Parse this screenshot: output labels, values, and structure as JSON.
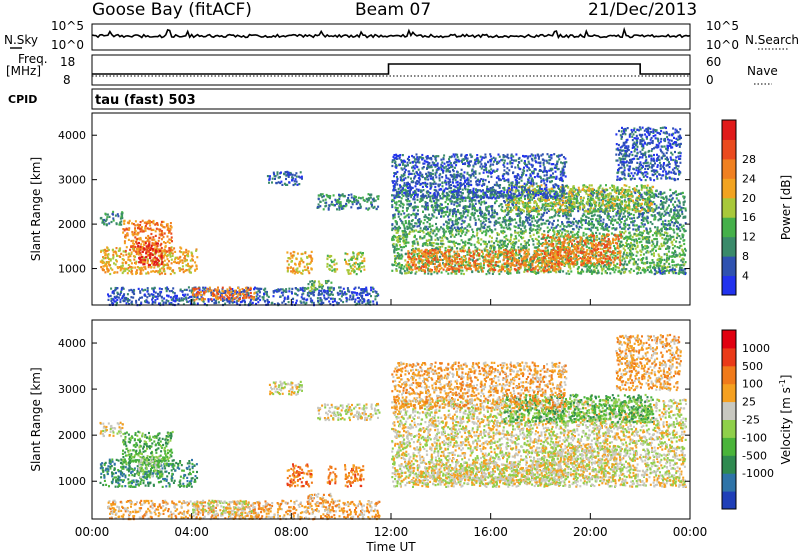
{
  "header": {
    "station": "Goose Bay (fitACF)",
    "beam": "Beam 07",
    "date": "21/Dec/2013"
  },
  "top_panels": {
    "nsky_label": "N.Sky",
    "nsky_ticks": [
      "10^5",
      "10^0"
    ],
    "nsearch_label": "N.Search",
    "nsearch_ticks": [
      "10^5",
      "10^0"
    ],
    "freq_label": "Freq.",
    "freq_unit": "[MHz]",
    "freq_ticks": [
      "18",
      "8"
    ],
    "nave_label": "Nave",
    "nave_ticks": [
      "60",
      "0"
    ],
    "cpid_label": "CPID",
    "cpid_value": "tau (fast) 503"
  },
  "chart_data": [
    {
      "type": "heatmap",
      "name": "power",
      "ylabel": "Slant Range [km]",
      "ylim": [
        180,
        4500
      ],
      "yticks": [
        1000,
        2000,
        3000,
        4000
      ],
      "xlim": [
        0,
        24
      ],
      "colorbar": {
        "label": "Power [dB]",
        "ticks": [
          "4",
          "8",
          "12",
          "16",
          "20",
          "24",
          "28"
        ],
        "colors": [
          "#2233ee",
          "#2f52b0",
          "#3a8a6a",
          "#45b04a",
          "#a8c83a",
          "#f2a320",
          "#f08020",
          "#ea4a1e",
          "#e01a1a"
        ]
      },
      "blobs": [
        {
          "t0": 0.3,
          "t1": 1.2,
          "r0": 2000,
          "r1": 2300,
          "c": 2
        },
        {
          "t0": 0.3,
          "t1": 4.2,
          "r0": 900,
          "r1": 1500,
          "c": 5
        },
        {
          "t0": 1.2,
          "t1": 3.2,
          "r0": 1400,
          "r1": 2100,
          "c": 6
        },
        {
          "t0": 1.8,
          "t1": 2.8,
          "r0": 1100,
          "r1": 1600,
          "c": 8
        },
        {
          "t0": 0.6,
          "t1": 11.5,
          "r0": 200,
          "r1": 600,
          "c": 1
        },
        {
          "t0": 4.0,
          "t1": 6.5,
          "r0": 300,
          "r1": 600,
          "c": 6
        },
        {
          "t0": 7.8,
          "t1": 8.8,
          "r0": 900,
          "r1": 1400,
          "c": 5
        },
        {
          "t0": 9.4,
          "t1": 9.8,
          "r0": 950,
          "r1": 1350,
          "c": 4
        },
        {
          "t0": 10.1,
          "t1": 10.9,
          "r0": 900,
          "r1": 1400,
          "c": 4
        },
        {
          "t0": 8.6,
          "t1": 9.6,
          "r0": 520,
          "r1": 750,
          "c": 3
        },
        {
          "t0": 7.0,
          "t1": 8.4,
          "r0": 2900,
          "r1": 3200,
          "c": 1
        },
        {
          "t0": 9.0,
          "t1": 11.5,
          "r0": 2350,
          "r1": 2700,
          "c": 2
        },
        {
          "t0": 12.0,
          "t1": 23.8,
          "r0": 900,
          "r1": 1900,
          "c": 3
        },
        {
          "t0": 12.6,
          "t1": 18.8,
          "r0": 950,
          "r1": 1450,
          "c": 6
        },
        {
          "t0": 18.0,
          "t1": 21.2,
          "r0": 1100,
          "r1": 1800,
          "c": 6
        },
        {
          "t0": 12.0,
          "t1": 23.8,
          "r0": 1900,
          "r1": 2800,
          "c": 2
        },
        {
          "t0": 16.5,
          "t1": 22.5,
          "r0": 2300,
          "r1": 2900,
          "c": 4
        },
        {
          "t0": 22.5,
          "t1": 23.8,
          "r0": 900,
          "r1": 1050,
          "c": 1
        },
        {
          "t0": 21.0,
          "t1": 23.6,
          "r0": 3000,
          "r1": 4200,
          "c": 1
        },
        {
          "t0": 12.0,
          "t1": 19.0,
          "r0": 2600,
          "r1": 3600,
          "c": 1
        }
      ]
    },
    {
      "type": "heatmap",
      "name": "velocity",
      "ylabel": "Slant Range [km]",
      "ylim": [
        180,
        4500
      ],
      "yticks": [
        1000,
        2000,
        3000,
        4000
      ],
      "xlim": [
        0,
        24
      ],
      "xticks": [
        "00:00",
        "04:00",
        "08:00",
        "12:00",
        "16:00",
        "20:00",
        "00:00"
      ],
      "xlabel": "Time UT",
      "colorbar": {
        "label": "Velocity [m s",
        "label_exp": "-1",
        "label_end": "]",
        "ticks": [
          "1000",
          "500",
          "100",
          "25",
          "-25",
          "-100",
          "-500",
          "-1000"
        ],
        "colors": [
          "#1f3fb8",
          "#2f74a8",
          "#2f8a50",
          "#4ab43a",
          "#8fcf4a",
          "#c8c8c0",
          "#f5a020",
          "#f07a1a",
          "#ea3a18",
          "#e00010"
        ]
      },
      "blobs": [
        {
          "t0": 0.3,
          "t1": 1.2,
          "r0": 2000,
          "r1": 2300,
          "c": 5
        },
        {
          "t0": 0.3,
          "t1": 4.2,
          "r0": 900,
          "r1": 1500,
          "c": 2
        },
        {
          "t0": 1.2,
          "t1": 3.2,
          "r0": 1400,
          "r1": 2100,
          "c": 3
        },
        {
          "t0": 1.8,
          "t1": 2.8,
          "r0": 1100,
          "r1": 1600,
          "c": 4
        },
        {
          "t0": 0.6,
          "t1": 11.5,
          "r0": 200,
          "r1": 600,
          "c": 6
        },
        {
          "t0": 4.0,
          "t1": 6.5,
          "r0": 300,
          "r1": 600,
          "c": 5
        },
        {
          "t0": 7.8,
          "t1": 8.8,
          "r0": 900,
          "r1": 1400,
          "c": 7
        },
        {
          "t0": 9.4,
          "t1": 9.8,
          "r0": 950,
          "r1": 1350,
          "c": 7
        },
        {
          "t0": 10.1,
          "t1": 10.9,
          "r0": 900,
          "r1": 1400,
          "c": 7
        },
        {
          "t0": 8.6,
          "t1": 9.6,
          "r0": 520,
          "r1": 750,
          "c": 6
        },
        {
          "t0": 7.0,
          "t1": 8.4,
          "r0": 2900,
          "r1": 3200,
          "c": 5
        },
        {
          "t0": 9.0,
          "t1": 11.5,
          "r0": 2350,
          "r1": 2700,
          "c": 5
        },
        {
          "t0": 12.0,
          "t1": 23.8,
          "r0": 900,
          "r1": 1900,
          "c": 5
        },
        {
          "t0": 12.6,
          "t1": 18.8,
          "r0": 950,
          "r1": 1450,
          "c": 5
        },
        {
          "t0": 18.0,
          "t1": 21.2,
          "r0": 1100,
          "r1": 1800,
          "c": 5
        },
        {
          "t0": 12.0,
          "t1": 23.8,
          "r0": 1900,
          "r1": 2800,
          "c": 5
        },
        {
          "t0": 16.5,
          "t1": 22.5,
          "r0": 2300,
          "r1": 2900,
          "c": 3
        },
        {
          "t0": 22.5,
          "t1": 23.8,
          "r0": 900,
          "r1": 1050,
          "c": 5
        },
        {
          "t0": 21.0,
          "t1": 23.6,
          "r0": 3000,
          "r1": 4200,
          "c": 6
        },
        {
          "t0": 12.0,
          "t1": 19.0,
          "r0": 2600,
          "r1": 3600,
          "c": 6
        }
      ]
    }
  ]
}
